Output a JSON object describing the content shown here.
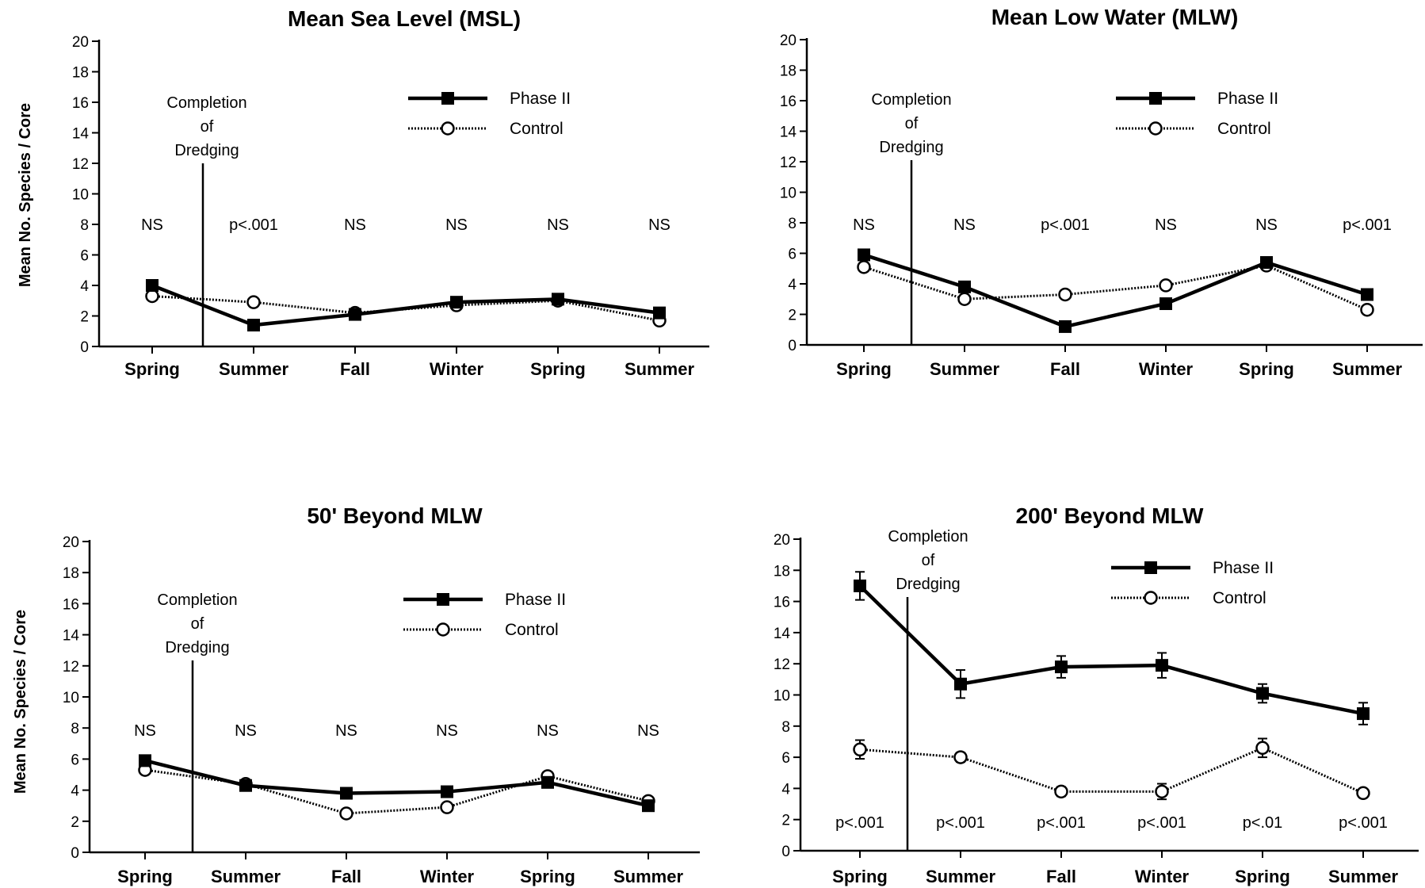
{
  "ylabel": "Mean No. Species / Core",
  "legend": {
    "phase": "Phase II",
    "control": "Control"
  },
  "dredging_label": [
    "Completion",
    "of",
    "Dredging"
  ],
  "chart_data": [
    {
      "type": "line",
      "title": "Mean Sea Level (MSL)",
      "ylabel": "Mean No. Species / Core",
      "ylim": [
        0,
        20
      ],
      "yticks": [
        0,
        2,
        4,
        6,
        8,
        10,
        12,
        14,
        16,
        18,
        20
      ],
      "categories": [
        "Spring",
        "Summer",
        "Fall",
        "Winter",
        "Spring",
        "Summer"
      ],
      "series": [
        {
          "name": "Phase II",
          "values": [
            4.0,
            1.4,
            2.1,
            2.9,
            3.1,
            2.2
          ]
        },
        {
          "name": "Control",
          "values": [
            3.3,
            2.9,
            2.2,
            2.7,
            3.0,
            1.7
          ]
        }
      ],
      "significance": [
        "NS",
        "p<.001",
        "NS",
        "NS",
        "NS",
        "NS"
      ],
      "annotation": "Completion of Dredging"
    },
    {
      "type": "line",
      "title": "Mean Low Water (MLW)",
      "ylabel": "",
      "ylim": [
        0,
        20
      ],
      "yticks": [
        0,
        2,
        4,
        6,
        8,
        10,
        12,
        14,
        16,
        18,
        20
      ],
      "categories": [
        "Spring",
        "Summer",
        "Fall",
        "Winter",
        "Spring",
        "Summer"
      ],
      "series": [
        {
          "name": "Phase II",
          "values": [
            5.9,
            3.8,
            1.2,
            2.7,
            5.4,
            3.3
          ]
        },
        {
          "name": "Control",
          "values": [
            5.1,
            3.0,
            3.3,
            3.9,
            5.2,
            2.3
          ]
        }
      ],
      "significance": [
        "NS",
        "NS",
        "p<.001",
        "NS",
        "NS",
        "p<.001"
      ],
      "annotation": "Completion of Dredging"
    },
    {
      "type": "line",
      "title": "50' Beyond MLW",
      "ylabel": "Mean No. Species / Core",
      "ylim": [
        0,
        20
      ],
      "yticks": [
        0,
        2,
        4,
        6,
        8,
        10,
        12,
        14,
        16,
        18,
        20
      ],
      "categories": [
        "Spring",
        "Summer",
        "Fall",
        "Winter",
        "Spring",
        "Summer"
      ],
      "series": [
        {
          "name": "Phase II",
          "values": [
            5.9,
            4.3,
            3.8,
            3.9,
            4.5,
            3.0
          ]
        },
        {
          "name": "Control",
          "values": [
            5.3,
            4.4,
            2.5,
            2.9,
            4.9,
            3.3
          ]
        }
      ],
      "significance": [
        "NS",
        "NS",
        "NS",
        "NS",
        "NS",
        "NS"
      ],
      "annotation": "Completion of Dredging"
    },
    {
      "type": "line",
      "title": "200' Beyond MLW",
      "ylabel": "",
      "ylim": [
        0,
        20
      ],
      "yticks": [
        0,
        2,
        4,
        6,
        8,
        10,
        12,
        14,
        16,
        18,
        20
      ],
      "categories": [
        "Spring",
        "Summer",
        "Fall",
        "Winter",
        "Spring",
        "Summer"
      ],
      "series": [
        {
          "name": "Phase II",
          "values": [
            17.0,
            10.7,
            11.8,
            11.9,
            10.1,
            8.8
          ],
          "errors": [
            0.9,
            0.9,
            0.7,
            0.8,
            0.6,
            0.7
          ]
        },
        {
          "name": "Control",
          "values": [
            6.5,
            6.0,
            3.8,
            3.8,
            6.6,
            3.7
          ],
          "errors": [
            0.6,
            0.3,
            0.3,
            0.5,
            0.6,
            0.2
          ]
        }
      ],
      "significance": [
        "p<.001",
        "p<.001",
        "p<.001",
        "p<.001",
        "p<.01",
        "p<.001"
      ],
      "annotation": "Completion of Dredging"
    }
  ]
}
